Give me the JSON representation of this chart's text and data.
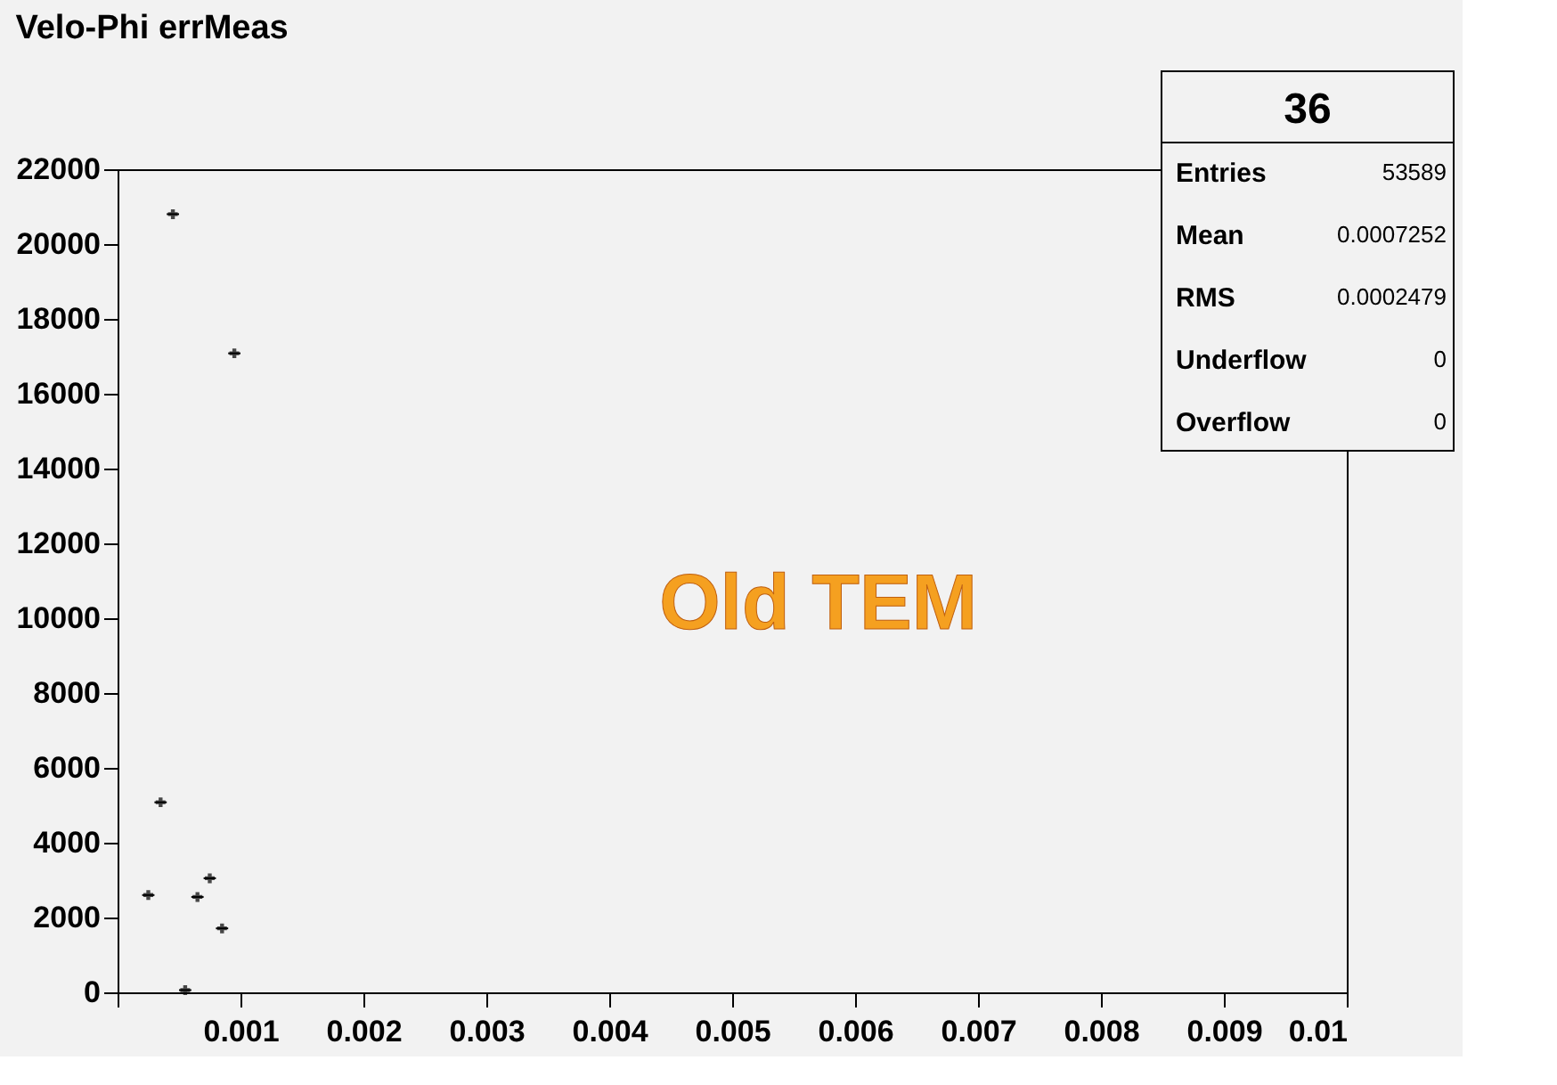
{
  "chart_data": {
    "type": "scatter",
    "title": "Velo-Phi errMeas",
    "x": [
      0.00025,
      0.00035,
      0.00045,
      0.00055,
      0.00065,
      0.00075,
      0.00085,
      0.00095
    ],
    "values": [
      2600,
      5080,
      20800,
      60,
      2550,
      3050,
      1710,
      17080
    ],
    "xerrors": [
      5e-05,
      5e-05,
      5e-05,
      5e-05,
      5e-05,
      5e-05,
      5e-05,
      5e-05
    ],
    "color": "#000000",
    "marker": "cross",
    "grid": false,
    "xlim": [
      0,
      0.01
    ],
    "xticks": [
      {
        "value": 0,
        "label": null
      },
      0.001,
      0.002,
      0.003,
      0.004,
      0.005,
      0.006,
      0.007,
      0.008,
      0.009,
      0.01
    ],
    "ylim": [
      0,
      22000
    ],
    "yticks": [
      0,
      2000,
      4000,
      6000,
      8000,
      10000,
      12000,
      14000,
      16000,
      18000,
      20000,
      22000
    ],
    "annotations": [
      "Old TEM",
      "36",
      "Entries",
      "53589",
      "Mean",
      "0.0007252",
      "RMS",
      "0.0002479",
      "Underflow",
      "0",
      "Overflow",
      "0"
    ]
  }
}
